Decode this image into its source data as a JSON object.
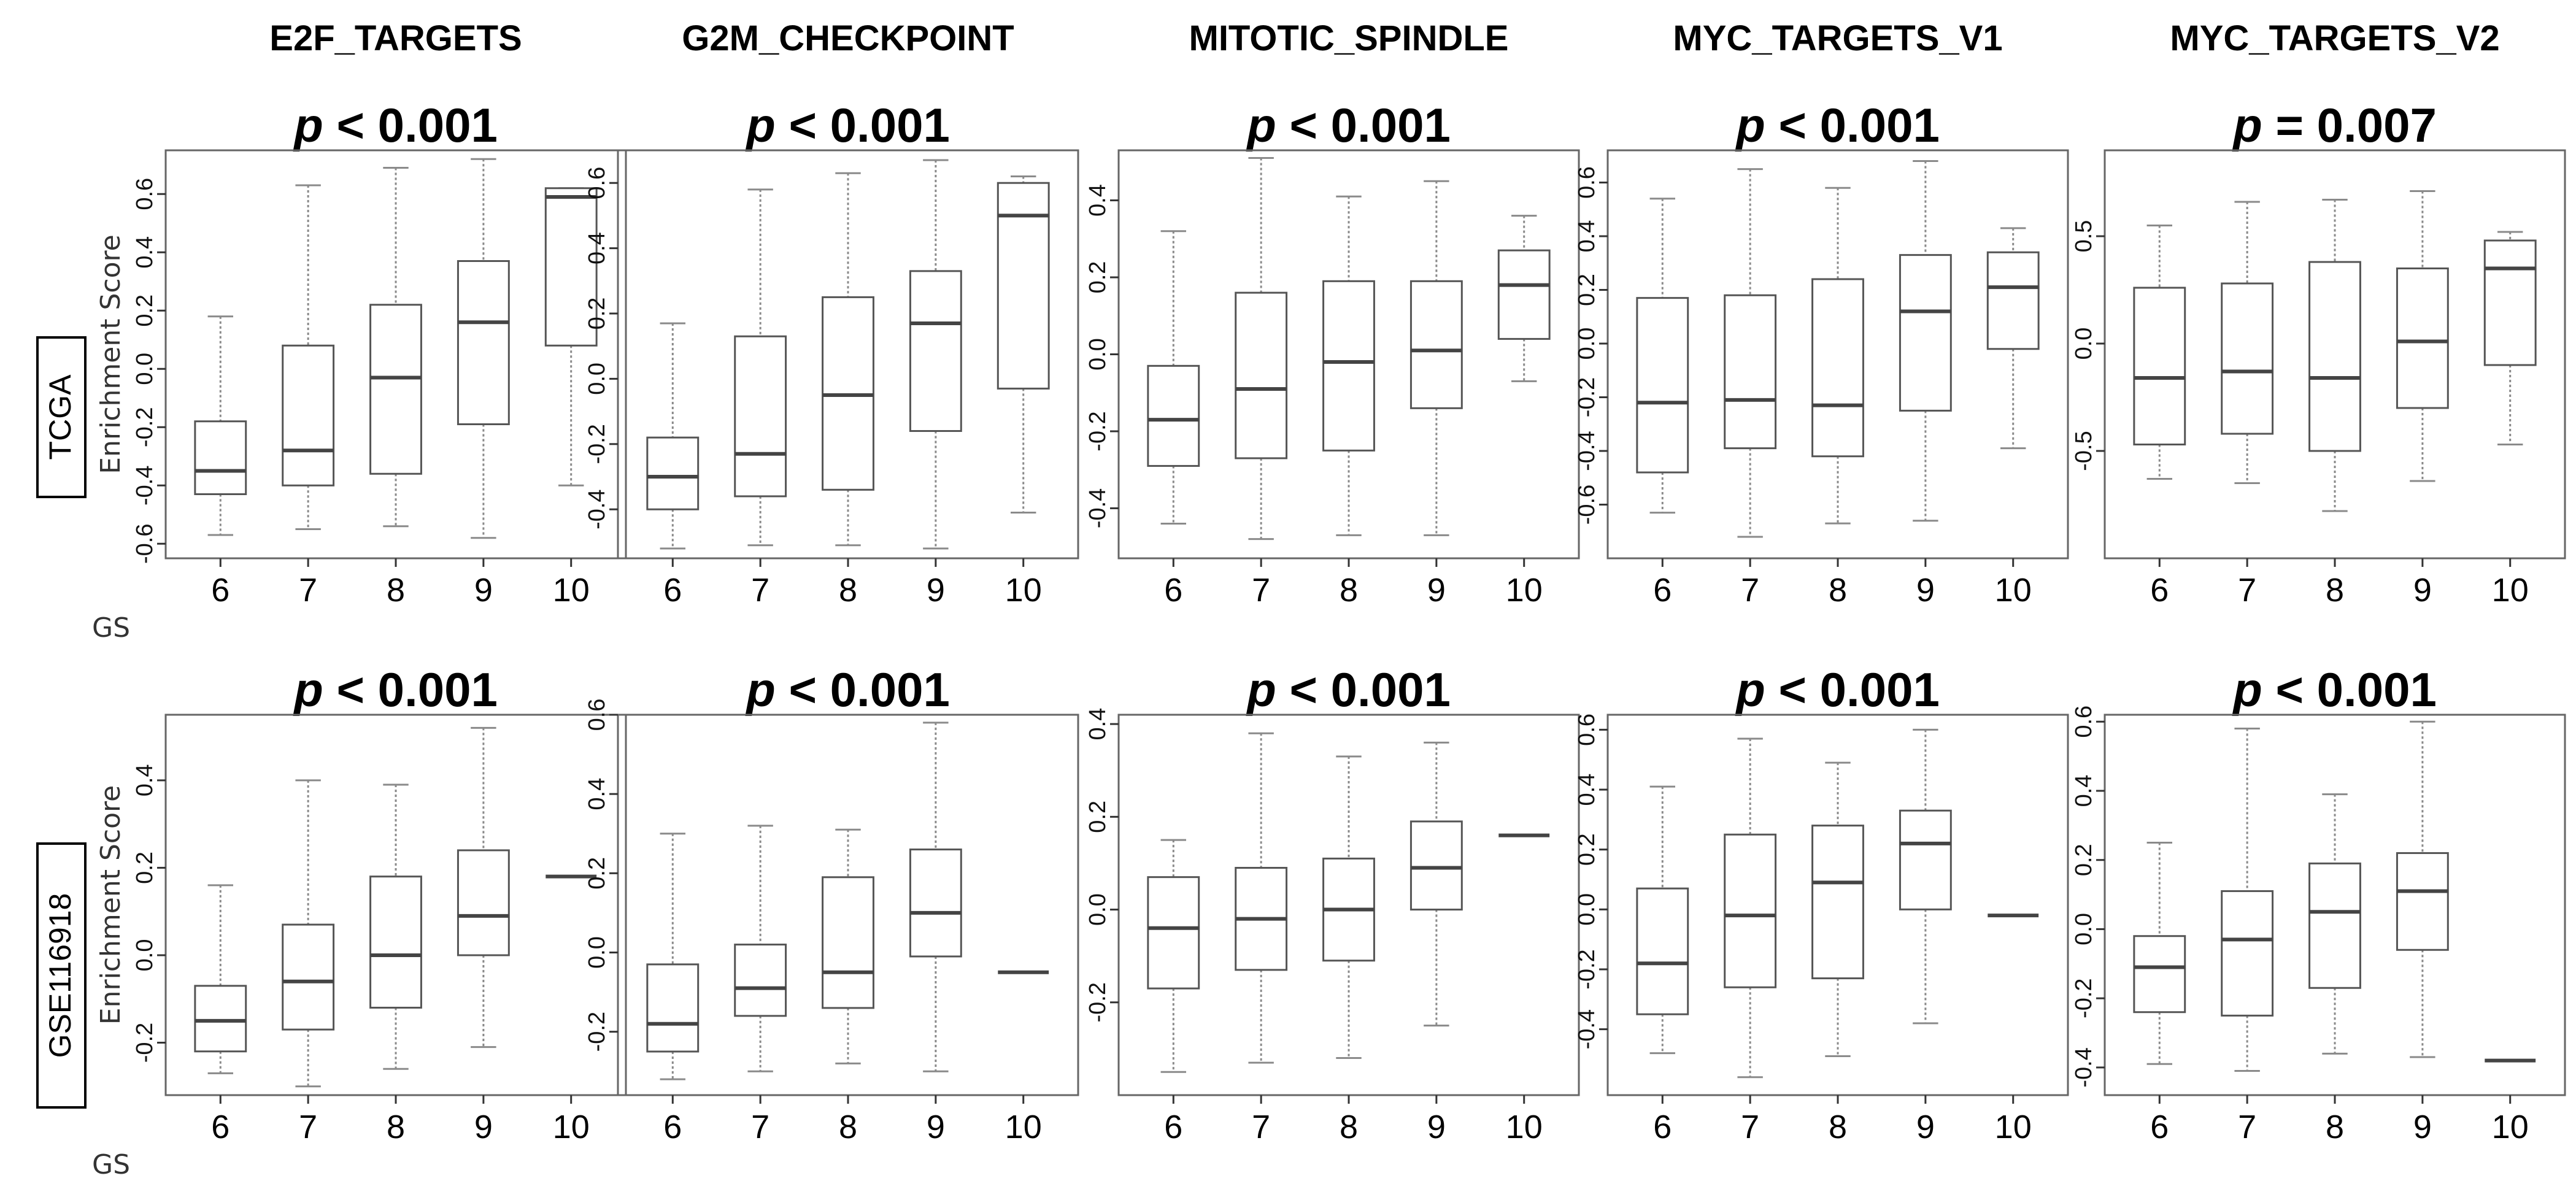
{
  "figure": {
    "row_labels": [
      "TCGA",
      "GSE116918"
    ],
    "column_titles": [
      "E2F_TARGETS",
      "G2M_CHECKPOINT",
      "MITOTIC_SPINDLE",
      "MYC_TARGETS_V1",
      "MYC_TARGETS_V2"
    ],
    "y_axis_label": "Enrichment Score",
    "x_axis_label": "GS",
    "colors": {
      "box": "#555555",
      "median": "#444444",
      "whisker": "#8a8a8a",
      "panel_border": "#666666",
      "text": "#000000"
    }
  },
  "chart_data": [
    {
      "type": "box",
      "row": "TCGA",
      "title": "E2F_TARGETS",
      "pvalue": "< 0.001",
      "xlabel": "GS",
      "ylabel": "Enrichment Score",
      "categories": [
        "6",
        "7",
        "8",
        "9",
        "10"
      ],
      "ylim": [
        -0.65,
        0.75
      ],
      "yticks": [
        -0.6,
        -0.4,
        -0.2,
        0.0,
        0.2,
        0.4,
        0.6
      ],
      "boxes": [
        {
          "min": -0.57,
          "q1": -0.43,
          "median": -0.35,
          "q3": -0.18,
          "max": 0.18
        },
        {
          "min": -0.55,
          "q1": -0.4,
          "median": -0.28,
          "q3": 0.08,
          "max": 0.63
        },
        {
          "min": -0.54,
          "q1": -0.36,
          "median": -0.03,
          "q3": 0.22,
          "max": 0.69
        },
        {
          "min": -0.58,
          "q1": -0.19,
          "median": 0.16,
          "q3": 0.37,
          "max": 0.72
        },
        {
          "min": -0.4,
          "q1": 0.08,
          "median": 0.59,
          "q3": 0.62,
          "max": 0.62
        }
      ]
    },
    {
      "type": "box",
      "row": "TCGA",
      "title": "G2M_CHECKPOINT",
      "pvalue": "< 0.001",
      "xlabel": "GS",
      "ylabel": "",
      "categories": [
        "6",
        "7",
        "8",
        "9",
        "10"
      ],
      "ylim": [
        -0.55,
        0.7
      ],
      "yticks": [
        -0.4,
        -0.2,
        0.0,
        0.2,
        0.4,
        0.6
      ],
      "boxes": [
        {
          "min": -0.52,
          "q1": -0.4,
          "median": -0.3,
          "q3": -0.18,
          "max": 0.17
        },
        {
          "min": -0.51,
          "q1": -0.36,
          "median": -0.23,
          "q3": 0.13,
          "max": 0.58
        },
        {
          "min": -0.51,
          "q1": -0.34,
          "median": -0.05,
          "q3": 0.25,
          "max": 0.63
        },
        {
          "min": -0.52,
          "q1": -0.16,
          "median": 0.17,
          "q3": 0.33,
          "max": 0.67
        },
        {
          "min": -0.41,
          "q1": -0.03,
          "median": 0.5,
          "q3": 0.6,
          "max": 0.62
        }
      ]
    },
    {
      "type": "box",
      "row": "TCGA",
      "title": "MITOTIC_SPINDLE",
      "pvalue": "< 0.001",
      "xlabel": "GS",
      "ylabel": "",
      "categories": [
        "6",
        "7",
        "8",
        "9",
        "10"
      ],
      "ylim": [
        -0.53,
        0.53
      ],
      "yticks": [
        -0.4,
        -0.2,
        0.0,
        0.2,
        0.4
      ],
      "boxes": [
        {
          "min": -0.44,
          "q1": -0.29,
          "median": -0.17,
          "q3": -0.03,
          "max": 0.32
        },
        {
          "min": -0.48,
          "q1": -0.27,
          "median": -0.09,
          "q3": 0.16,
          "max": 0.51
        },
        {
          "min": -0.47,
          "q1": -0.25,
          "median": -0.02,
          "q3": 0.19,
          "max": 0.41
        },
        {
          "min": -0.47,
          "q1": -0.14,
          "median": 0.01,
          "q3": 0.19,
          "max": 0.45
        },
        {
          "min": -0.07,
          "q1": 0.04,
          "median": 0.18,
          "q3": 0.27,
          "max": 0.36
        }
      ]
    },
    {
      "type": "box",
      "row": "TCGA",
      "title": "MYC_TARGETS_V1",
      "pvalue": "< 0.001",
      "xlabel": "GS",
      "ylabel": "",
      "categories": [
        "6",
        "7",
        "8",
        "9",
        "10"
      ],
      "ylim": [
        -0.8,
        0.72
      ],
      "yticks": [
        -0.6,
        -0.4,
        -0.2,
        0.0,
        0.2,
        0.4,
        0.6
      ],
      "boxes": [
        {
          "min": -0.63,
          "q1": -0.48,
          "median": -0.22,
          "q3": 0.17,
          "max": 0.54
        },
        {
          "min": -0.72,
          "q1": -0.39,
          "median": -0.21,
          "q3": 0.18,
          "max": 0.65
        },
        {
          "min": -0.67,
          "q1": -0.42,
          "median": -0.23,
          "q3": 0.24,
          "max": 0.58
        },
        {
          "min": -0.66,
          "q1": -0.25,
          "median": 0.12,
          "q3": 0.33,
          "max": 0.68
        },
        {
          "min": -0.39,
          "q1": -0.02,
          "median": 0.21,
          "q3": 0.34,
          "max": 0.43
        }
      ]
    },
    {
      "type": "box",
      "row": "TCGA",
      "title": "MYC_TARGETS_V2",
      "pvalue": "= 0.007",
      "xlabel": "GS",
      "ylabel": "",
      "categories": [
        "6",
        "7",
        "8",
        "9",
        "10"
      ],
      "ylim": [
        -1.0,
        0.9
      ],
      "yticks": [
        -0.5,
        0.0,
        0.5
      ],
      "boxes": [
        {
          "min": -0.63,
          "q1": -0.47,
          "median": -0.16,
          "q3": 0.26,
          "max": 0.55
        },
        {
          "min": -0.65,
          "q1": -0.42,
          "median": -0.13,
          "q3": 0.28,
          "max": 0.66
        },
        {
          "min": -0.78,
          "q1": -0.5,
          "median": -0.16,
          "q3": 0.38,
          "max": 0.67
        },
        {
          "min": -0.64,
          "q1": -0.3,
          "median": 0.01,
          "q3": 0.35,
          "max": 0.71
        },
        {
          "min": -0.47,
          "q1": -0.1,
          "median": 0.35,
          "q3": 0.48,
          "max": 0.52
        }
      ]
    },
    {
      "type": "box",
      "row": "GSE116918",
      "title": "E2F_TARGETS",
      "pvalue": "< 0.001",
      "xlabel": "GS",
      "ylabel": "Enrichment Score",
      "categories": [
        "6",
        "7",
        "8",
        "9",
        "10"
      ],
      "ylim": [
        -0.32,
        0.55
      ],
      "yticks": [
        -0.2,
        0.0,
        0.2,
        0.4
      ],
      "boxes": [
        {
          "min": -0.27,
          "q1": -0.22,
          "median": -0.15,
          "q3": -0.07,
          "max": 0.16
        },
        {
          "min": -0.3,
          "q1": -0.17,
          "median": -0.06,
          "q3": 0.07,
          "max": 0.4
        },
        {
          "min": -0.26,
          "q1": -0.12,
          "median": 0.0,
          "q3": 0.18,
          "max": 0.39
        },
        {
          "min": -0.21,
          "q1": 0.0,
          "median": 0.09,
          "q3": 0.24,
          "max": 0.52
        },
        {
          "min": 0.18,
          "q1": 0.18,
          "median": 0.18,
          "q3": 0.18,
          "max": 0.18
        }
      ]
    },
    {
      "type": "box",
      "row": "GSE116918",
      "title": "G2M_CHECKPOINT",
      "pvalue": "< 0.001",
      "xlabel": "GS",
      "ylabel": "",
      "categories": [
        "6",
        "7",
        "8",
        "9",
        "10"
      ],
      "ylim": [
        -0.36,
        0.6
      ],
      "yticks": [
        -0.2,
        0.0,
        0.2,
        0.4,
        0.6
      ],
      "boxes": [
        {
          "min": -0.32,
          "q1": -0.25,
          "median": -0.18,
          "q3": -0.03,
          "max": 0.3
        },
        {
          "min": -0.3,
          "q1": -0.16,
          "median": -0.09,
          "q3": 0.02,
          "max": 0.32
        },
        {
          "min": -0.28,
          "q1": -0.14,
          "median": -0.05,
          "q3": 0.19,
          "max": 0.31
        },
        {
          "min": -0.3,
          "q1": -0.01,
          "median": 0.1,
          "q3": 0.26,
          "max": 0.58
        },
        {
          "min": -0.05,
          "q1": -0.05,
          "median": -0.05,
          "q3": -0.05,
          "max": -0.05
        }
      ]
    },
    {
      "type": "box",
      "row": "GSE116918",
      "title": "MITOTIC_SPINDLE",
      "pvalue": "< 0.001",
      "xlabel": "GS",
      "ylabel": "",
      "categories": [
        "6",
        "7",
        "8",
        "9",
        "10"
      ],
      "ylim": [
        -0.4,
        0.42
      ],
      "yticks": [
        -0.2,
        0.0,
        0.2,
        0.4
      ],
      "boxes": [
        {
          "min": -0.35,
          "q1": -0.17,
          "median": -0.04,
          "q3": 0.07,
          "max": 0.15
        },
        {
          "min": -0.33,
          "q1": -0.13,
          "median": -0.02,
          "q3": 0.09,
          "max": 0.38
        },
        {
          "min": -0.32,
          "q1": -0.11,
          "median": 0.0,
          "q3": 0.11,
          "max": 0.33
        },
        {
          "min": -0.25,
          "q1": -0.0,
          "median": 0.09,
          "q3": 0.19,
          "max": 0.36
        },
        {
          "min": 0.16,
          "q1": 0.16,
          "median": 0.16,
          "q3": 0.16,
          "max": 0.16
        }
      ]
    },
    {
      "type": "box",
      "row": "GSE116918",
      "title": "MYC_TARGETS_V1",
      "pvalue": "< 0.001",
      "xlabel": "GS",
      "ylabel": "",
      "categories": [
        "6",
        "7",
        "8",
        "9",
        "10"
      ],
      "ylim": [
        -0.62,
        0.65
      ],
      "yticks": [
        -0.4,
        -0.2,
        0.0,
        0.2,
        0.4,
        0.6
      ],
      "boxes": [
        {
          "min": -0.48,
          "q1": -0.35,
          "median": -0.18,
          "q3": 0.07,
          "max": 0.41
        },
        {
          "min": -0.56,
          "q1": -0.26,
          "median": -0.02,
          "q3": 0.25,
          "max": 0.57
        },
        {
          "min": -0.49,
          "q1": -0.23,
          "median": 0.09,
          "q3": 0.28,
          "max": 0.49
        },
        {
          "min": -0.38,
          "q1": 0.0,
          "median": 0.22,
          "q3": 0.33,
          "max": 0.6
        },
        {
          "min": -0.02,
          "q1": -0.02,
          "median": -0.02,
          "q3": -0.02,
          "max": -0.02
        }
      ]
    },
    {
      "type": "box",
      "row": "GSE116918",
      "title": "MYC_TARGETS_V2",
      "pvalue": "< 0.001",
      "xlabel": "GS",
      "ylabel": "",
      "categories": [
        "6",
        "7",
        "8",
        "9",
        "10"
      ],
      "ylim": [
        -0.48,
        0.62
      ],
      "yticks": [
        -0.4,
        -0.2,
        0.0,
        0.2,
        0.4,
        0.6
      ],
      "boxes": [
        {
          "min": -0.39,
          "q1": -0.24,
          "median": -0.11,
          "q3": -0.02,
          "max": 0.25
        },
        {
          "min": -0.41,
          "q1": -0.25,
          "median": -0.03,
          "q3": 0.11,
          "max": 0.58
        },
        {
          "min": -0.36,
          "q1": -0.17,
          "median": 0.05,
          "q3": 0.19,
          "max": 0.39
        },
        {
          "min": -0.37,
          "q1": -0.06,
          "median": 0.11,
          "q3": 0.22,
          "max": 0.6
        },
        {
          "min": -0.38,
          "q1": -0.38,
          "median": -0.38,
          "q3": -0.38,
          "max": -0.38
        }
      ]
    }
  ]
}
